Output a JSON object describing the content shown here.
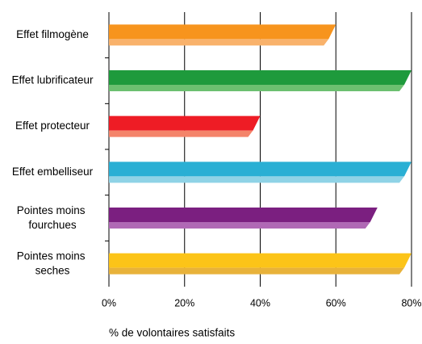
{
  "chart_data": {
    "type": "barh",
    "xlabel": "% de volontaires satisfaits",
    "categories": [
      "Effet filmogène",
      "Effet lubrificateur",
      "Effet protecteur",
      "Effet embelliseur",
      "Pointes moins fourchues",
      "Pointes moins seches"
    ],
    "values": [
      60,
      80,
      40,
      80,
      71,
      80
    ],
    "colors": [
      [
        "#f7941d",
        "#f9b26b"
      ],
      [
        "#1e9a3c",
        "#6cc070"
      ],
      [
        "#ee1c25",
        "#f4846a"
      ],
      [
        "#29afd4",
        "#8fd3e6"
      ],
      [
        "#7b1f80",
        "#b069b5"
      ],
      [
        "#fcc418",
        "#e8b23a"
      ]
    ],
    "xlim": [
      0,
      80
    ],
    "xticks": [
      {
        "value": 0,
        "label": "0%"
      },
      {
        "value": 20,
        "label": "20%"
      },
      {
        "value": 40,
        "label": "40%"
      },
      {
        "value": 60,
        "label": "60%"
      },
      {
        "value": 80,
        "label": "80%"
      }
    ],
    "grid": true
  }
}
